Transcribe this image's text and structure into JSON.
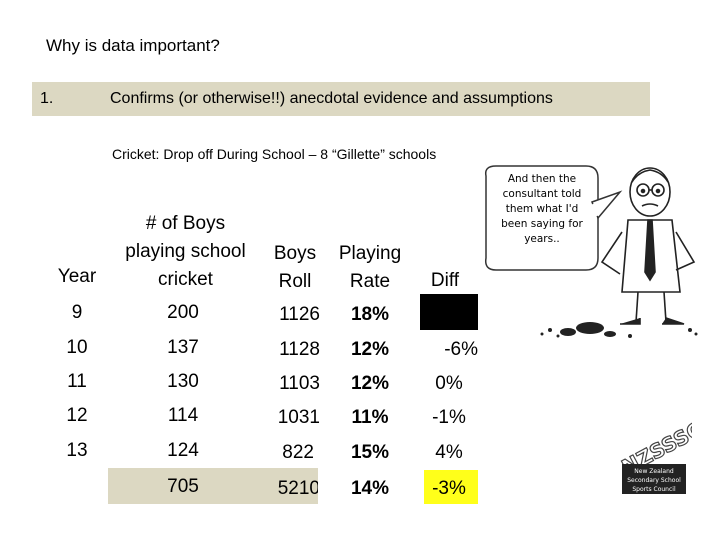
{
  "title": "Why is data important?",
  "point": {
    "number": "1.",
    "text": "Confirms (or otherwise!!) anecdotal evidence and assumptions"
  },
  "subtitle": "Cricket: Drop off During School – 8 “Gillette” schools",
  "table": {
    "headers": {
      "year": "Year",
      "boys_line1": "# of Boys",
      "boys_line2": "playing school",
      "boys_line3": "cricket",
      "roll_line1": "Boys",
      "roll_line2": "Roll",
      "rate_line1": "Playing",
      "rate_line2": "Rate",
      "diff": "Diff"
    },
    "rows": [
      {
        "year": "9",
        "boys": "200",
        "roll": "1126",
        "rate": "18%",
        "diff": ""
      },
      {
        "year": "10",
        "boys": "137",
        "roll": "1128",
        "rate": "12%",
        "diff": "-6%"
      },
      {
        "year": "11",
        "boys": "130",
        "roll": "1103",
        "rate": "12%",
        "diff": "0%"
      },
      {
        "year": "12",
        "boys": "114",
        "roll": "1031",
        "rate": "11%",
        "diff": "-1%"
      },
      {
        "year": "13",
        "boys": "124",
        "roll": "822",
        "rate": "15%",
        "diff": "4%"
      }
    ],
    "total": {
      "boys": "705",
      "roll": "5210",
      "rate": "14%",
      "diff": "-3%"
    }
  },
  "cartoon": {
    "bubble_line1": "And then the",
    "bubble_line2": "consultant told",
    "bubble_line3": "them what I'd",
    "bubble_line4": "been saying for",
    "bubble_line5": "years.."
  },
  "logo": {
    "mark": "NZSSSC",
    "line1": "New Zealand",
    "line2": "Secondary School",
    "line3": "Sports Council"
  },
  "colors": {
    "bar": "#dcd8c2",
    "highlight": "#ffff1a"
  }
}
